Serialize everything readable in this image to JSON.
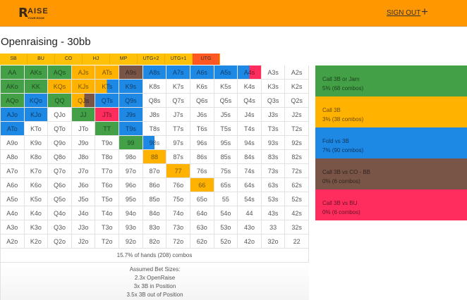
{
  "header": {
    "logo_main": "AISE",
    "logo_sub": "YOUR EDGE",
    "sign_out": "SIGN OUT",
    "plus": "+"
  },
  "title": "Openraising - 30bb",
  "positions": [
    {
      "label": "SB"
    },
    {
      "label": "BU"
    },
    {
      "label": "CO"
    },
    {
      "label": "HJ"
    },
    {
      "label": "MP"
    },
    {
      "label": "UTG+2"
    },
    {
      "label": "UTG+1"
    },
    {
      "label": "UTG",
      "active": true
    }
  ],
  "colors": {
    "g": "#43a047",
    "y": "#ffb300",
    "b": "#1e88e5",
    "br": "#795548",
    "r": "#ff2d5e",
    "w": "#ffffff"
  },
  "grid": [
    [
      [
        "AA",
        [
          [
            "g",
            1
          ]
        ]
      ],
      [
        "AKs",
        [
          [
            "g",
            1
          ]
        ]
      ],
      [
        "AQs",
        [
          [
            "g",
            1
          ]
        ]
      ],
      [
        "AJs",
        [
          [
            "y",
            1
          ]
        ]
      ],
      [
        "ATs",
        [
          [
            "y",
            1
          ]
        ]
      ],
      [
        "A9s",
        [
          [
            "br",
            1
          ]
        ]
      ],
      [
        "A8s",
        [
          [
            "b",
            1
          ]
        ]
      ],
      [
        "A7s",
        [
          [
            "b",
            1
          ]
        ]
      ],
      [
        "A6s",
        [
          [
            "b",
            1
          ]
        ]
      ],
      [
        "A5s",
        [
          [
            "b",
            1
          ]
        ]
      ],
      [
        "A4s",
        [
          [
            "b",
            0.5
          ],
          [
            "r",
            0.5
          ]
        ]
      ],
      [
        "A3s",
        [
          [
            "w",
            1
          ]
        ]
      ],
      [
        "A2s",
        [
          [
            "w",
            1
          ]
        ]
      ]
    ],
    [
      [
        "AKo",
        [
          [
            "g",
            1
          ]
        ]
      ],
      [
        "KK",
        [
          [
            "g",
            1
          ]
        ]
      ],
      [
        "KQs",
        [
          [
            "y",
            1
          ]
        ]
      ],
      [
        "KJs",
        [
          [
            "y",
            1
          ]
        ]
      ],
      [
        "KTs",
        [
          [
            "y",
            0.5
          ],
          [
            "b",
            0.5
          ]
        ]
      ],
      [
        "K9s",
        [
          [
            "b",
            1
          ]
        ]
      ],
      [
        "K8s",
        [
          [
            "w",
            1
          ]
        ]
      ],
      [
        "K7s",
        [
          [
            "w",
            1
          ]
        ]
      ],
      [
        "K6s",
        [
          [
            "w",
            1
          ]
        ]
      ],
      [
        "K5s",
        [
          [
            "w",
            1
          ]
        ]
      ],
      [
        "K4s",
        [
          [
            "w",
            1
          ]
        ]
      ],
      [
        "K3s",
        [
          [
            "w",
            1
          ]
        ]
      ],
      [
        "K2s",
        [
          [
            "w",
            1
          ]
        ]
      ]
    ],
    [
      [
        "AQo",
        [
          [
            "g",
            1
          ]
        ]
      ],
      [
        "KQo",
        [
          [
            "b",
            1
          ]
        ]
      ],
      [
        "QQ",
        [
          [
            "g",
            1
          ]
        ]
      ],
      [
        "QJs",
        [
          [
            "y",
            0.55
          ],
          [
            "br",
            0.45
          ]
        ]
      ],
      [
        "QTs",
        [
          [
            "b",
            1
          ]
        ]
      ],
      [
        "Q9s",
        [
          [
            "b",
            1
          ]
        ]
      ],
      [
        "Q8s",
        [
          [
            "w",
            1
          ]
        ]
      ],
      [
        "Q7s",
        [
          [
            "w",
            1
          ]
        ]
      ],
      [
        "Q6s",
        [
          [
            "w",
            1
          ]
        ]
      ],
      [
        "Q5s",
        [
          [
            "w",
            1
          ]
        ]
      ],
      [
        "Q4s",
        [
          [
            "w",
            1
          ]
        ]
      ],
      [
        "Q3s",
        [
          [
            "w",
            1
          ]
        ]
      ],
      [
        "Q2s",
        [
          [
            "w",
            1
          ]
        ]
      ]
    ],
    [
      [
        "AJo",
        [
          [
            "b",
            1
          ]
        ]
      ],
      [
        "KJo",
        [
          [
            "b",
            1
          ]
        ]
      ],
      [
        "QJo",
        [
          [
            "w",
            1
          ]
        ]
      ],
      [
        "JJ",
        [
          [
            "g",
            1
          ]
        ]
      ],
      [
        "JTs",
        [
          [
            "r",
            1
          ]
        ]
      ],
      [
        "J9s",
        [
          [
            "b",
            1
          ]
        ]
      ],
      [
        "J8s",
        [
          [
            "w",
            1
          ]
        ]
      ],
      [
        "J7s",
        [
          [
            "w",
            1
          ]
        ]
      ],
      [
        "J6s",
        [
          [
            "w",
            1
          ]
        ]
      ],
      [
        "J5s",
        [
          [
            "w",
            1
          ]
        ]
      ],
      [
        "J4s",
        [
          [
            "w",
            1
          ]
        ]
      ],
      [
        "J3s",
        [
          [
            "w",
            1
          ]
        ]
      ],
      [
        "J2s",
        [
          [
            "w",
            1
          ]
        ]
      ]
    ],
    [
      [
        "ATo",
        [
          [
            "b",
            1
          ]
        ]
      ],
      [
        "KTo",
        [
          [
            "w",
            1
          ]
        ]
      ],
      [
        "QTo",
        [
          [
            "w",
            1
          ]
        ]
      ],
      [
        "JTo",
        [
          [
            "w",
            1
          ]
        ]
      ],
      [
        "TT",
        [
          [
            "g",
            1
          ]
        ]
      ],
      [
        "T9s",
        [
          [
            "b",
            1
          ]
        ]
      ],
      [
        "T8s",
        [
          [
            "w",
            1
          ]
        ]
      ],
      [
        "T7s",
        [
          [
            "w",
            1
          ]
        ]
      ],
      [
        "T6s",
        [
          [
            "w",
            1
          ]
        ]
      ],
      [
        "T5s",
        [
          [
            "w",
            1
          ]
        ]
      ],
      [
        "T4s",
        [
          [
            "w",
            1
          ]
        ]
      ],
      [
        "T3s",
        [
          [
            "w",
            1
          ]
        ]
      ],
      [
        "T2s",
        [
          [
            "w",
            1
          ]
        ]
      ]
    ],
    [
      [
        "A9o",
        [
          [
            "w",
            1
          ]
        ]
      ],
      [
        "K9o",
        [
          [
            "w",
            1
          ]
        ]
      ],
      [
        "Q9o",
        [
          [
            "w",
            1
          ]
        ]
      ],
      [
        "J9o",
        [
          [
            "w",
            1
          ]
        ]
      ],
      [
        "T9o",
        [
          [
            "w",
            1
          ]
        ]
      ],
      [
        "99",
        [
          [
            "g",
            1
          ]
        ]
      ],
      [
        "98s",
        [
          [
            "b",
            0.5
          ],
          [
            "w",
            0.5
          ]
        ]
      ],
      [
        "97s",
        [
          [
            "w",
            1
          ]
        ]
      ],
      [
        "96s",
        [
          [
            "w",
            1
          ]
        ]
      ],
      [
        "95s",
        [
          [
            "w",
            1
          ]
        ]
      ],
      [
        "94s",
        [
          [
            "w",
            1
          ]
        ]
      ],
      [
        "93s",
        [
          [
            "w",
            1
          ]
        ]
      ],
      [
        "92s",
        [
          [
            "w",
            1
          ]
        ]
      ]
    ],
    [
      [
        "A8o",
        [
          [
            "w",
            1
          ]
        ]
      ],
      [
        "K8o",
        [
          [
            "w",
            1
          ]
        ]
      ],
      [
        "Q8o",
        [
          [
            "w",
            1
          ]
        ]
      ],
      [
        "J8o",
        [
          [
            "w",
            1
          ]
        ]
      ],
      [
        "T8o",
        [
          [
            "w",
            1
          ]
        ]
      ],
      [
        "98o",
        [
          [
            "w",
            1
          ]
        ]
      ],
      [
        "88",
        [
          [
            "y",
            1
          ]
        ]
      ],
      [
        "87s",
        [
          [
            "w",
            1
          ]
        ]
      ],
      [
        "86s",
        [
          [
            "w",
            1
          ]
        ]
      ],
      [
        "85s",
        [
          [
            "w",
            1
          ]
        ]
      ],
      [
        "84s",
        [
          [
            "w",
            1
          ]
        ]
      ],
      [
        "83s",
        [
          [
            "w",
            1
          ]
        ]
      ],
      [
        "82s",
        [
          [
            "w",
            1
          ]
        ]
      ]
    ],
    [
      [
        "A7o",
        [
          [
            "w",
            1
          ]
        ]
      ],
      [
        "K7o",
        [
          [
            "w",
            1
          ]
        ]
      ],
      [
        "Q7o",
        [
          [
            "w",
            1
          ]
        ]
      ],
      [
        "J7o",
        [
          [
            "w",
            1
          ]
        ]
      ],
      [
        "T7o",
        [
          [
            "w",
            1
          ]
        ]
      ],
      [
        "97o",
        [
          [
            "w",
            1
          ]
        ]
      ],
      [
        "87o",
        [
          [
            "w",
            1
          ]
        ]
      ],
      [
        "77",
        [
          [
            "y",
            1
          ]
        ]
      ],
      [
        "76s",
        [
          [
            "w",
            1
          ]
        ]
      ],
      [
        "75s",
        [
          [
            "w",
            1
          ]
        ]
      ],
      [
        "74s",
        [
          [
            "w",
            1
          ]
        ]
      ],
      [
        "73s",
        [
          [
            "w",
            1
          ]
        ]
      ],
      [
        "72s",
        [
          [
            "w",
            1
          ]
        ]
      ]
    ],
    [
      [
        "A6o",
        [
          [
            "w",
            1
          ]
        ]
      ],
      [
        "K6o",
        [
          [
            "w",
            1
          ]
        ]
      ],
      [
        "Q6o",
        [
          [
            "w",
            1
          ]
        ]
      ],
      [
        "J6o",
        [
          [
            "w",
            1
          ]
        ]
      ],
      [
        "T6o",
        [
          [
            "w",
            1
          ]
        ]
      ],
      [
        "96o",
        [
          [
            "w",
            1
          ]
        ]
      ],
      [
        "86o",
        [
          [
            "w",
            1
          ]
        ]
      ],
      [
        "76o",
        [
          [
            "w",
            1
          ]
        ]
      ],
      [
        "66",
        [
          [
            "y",
            1
          ]
        ]
      ],
      [
        "65s",
        [
          [
            "w",
            1
          ]
        ]
      ],
      [
        "64s",
        [
          [
            "w",
            1
          ]
        ]
      ],
      [
        "63s",
        [
          [
            "w",
            1
          ]
        ]
      ],
      [
        "62s",
        [
          [
            "w",
            1
          ]
        ]
      ]
    ],
    [
      [
        "A5o",
        [
          [
            "w",
            1
          ]
        ]
      ],
      [
        "K5o",
        [
          [
            "w",
            1
          ]
        ]
      ],
      [
        "Q5o",
        [
          [
            "w",
            1
          ]
        ]
      ],
      [
        "J5o",
        [
          [
            "w",
            1
          ]
        ]
      ],
      [
        "T5o",
        [
          [
            "w",
            1
          ]
        ]
      ],
      [
        "95o",
        [
          [
            "w",
            1
          ]
        ]
      ],
      [
        "85o",
        [
          [
            "w",
            1
          ]
        ]
      ],
      [
        "75o",
        [
          [
            "w",
            1
          ]
        ]
      ],
      [
        "65o",
        [
          [
            "w",
            1
          ]
        ]
      ],
      [
        "55",
        [
          [
            "w",
            1
          ]
        ]
      ],
      [
        "54s",
        [
          [
            "w",
            1
          ]
        ]
      ],
      [
        "53s",
        [
          [
            "w",
            1
          ]
        ]
      ],
      [
        "52s",
        [
          [
            "w",
            1
          ]
        ]
      ]
    ],
    [
      [
        "A4o",
        [
          [
            "w",
            1
          ]
        ]
      ],
      [
        "K4o",
        [
          [
            "w",
            1
          ]
        ]
      ],
      [
        "Q4o",
        [
          [
            "w",
            1
          ]
        ]
      ],
      [
        "J4o",
        [
          [
            "w",
            1
          ]
        ]
      ],
      [
        "T4o",
        [
          [
            "w",
            1
          ]
        ]
      ],
      [
        "94o",
        [
          [
            "w",
            1
          ]
        ]
      ],
      [
        "84o",
        [
          [
            "w",
            1
          ]
        ]
      ],
      [
        "74o",
        [
          [
            "w",
            1
          ]
        ]
      ],
      [
        "64o",
        [
          [
            "w",
            1
          ]
        ]
      ],
      [
        "54o",
        [
          [
            "w",
            1
          ]
        ]
      ],
      [
        "44",
        [
          [
            "w",
            1
          ]
        ]
      ],
      [
        "43s",
        [
          [
            "w",
            1
          ]
        ]
      ],
      [
        "42s",
        [
          [
            "w",
            1
          ]
        ]
      ]
    ],
    [
      [
        "A3o",
        [
          [
            "w",
            1
          ]
        ]
      ],
      [
        "K3o",
        [
          [
            "w",
            1
          ]
        ]
      ],
      [
        "Q3o",
        [
          [
            "w",
            1
          ]
        ]
      ],
      [
        "J3o",
        [
          [
            "w",
            1
          ]
        ]
      ],
      [
        "T3o",
        [
          [
            "w",
            1
          ]
        ]
      ],
      [
        "93o",
        [
          [
            "w",
            1
          ]
        ]
      ],
      [
        "83o",
        [
          [
            "w",
            1
          ]
        ]
      ],
      [
        "73o",
        [
          [
            "w",
            1
          ]
        ]
      ],
      [
        "63o",
        [
          [
            "w",
            1
          ]
        ]
      ],
      [
        "53o",
        [
          [
            "w",
            1
          ]
        ]
      ],
      [
        "43o",
        [
          [
            "w",
            1
          ]
        ]
      ],
      [
        "33",
        [
          [
            "w",
            1
          ]
        ]
      ],
      [
        "32s",
        [
          [
            "w",
            1
          ]
        ]
      ]
    ],
    [
      [
        "A2o",
        [
          [
            "w",
            1
          ]
        ]
      ],
      [
        "K2o",
        [
          [
            "w",
            1
          ]
        ]
      ],
      [
        "Q2o",
        [
          [
            "w",
            1
          ]
        ]
      ],
      [
        "J2o",
        [
          [
            "w",
            1
          ]
        ]
      ],
      [
        "T2o",
        [
          [
            "w",
            1
          ]
        ]
      ],
      [
        "92o",
        [
          [
            "w",
            1
          ]
        ]
      ],
      [
        "82o",
        [
          [
            "w",
            1
          ]
        ]
      ],
      [
        "72o",
        [
          [
            "w",
            1
          ]
        ]
      ],
      [
        "62o",
        [
          [
            "w",
            1
          ]
        ]
      ],
      [
        "52o",
        [
          [
            "w",
            1
          ]
        ]
      ],
      [
        "42o",
        [
          [
            "w",
            1
          ]
        ]
      ],
      [
        "32o",
        [
          [
            "w",
            1
          ]
        ]
      ],
      [
        "22",
        [
          [
            "w",
            1
          ]
        ]
      ]
    ]
  ],
  "summary": "15.7% of hands (208) combos",
  "bet_sizes": {
    "heading": "Assumed Bet Sizes:",
    "lines": [
      "2.3x OpenRaise",
      "3x 3B in Position",
      "3.5x 3B out of Position"
    ]
  },
  "legend": [
    {
      "label": "Call 3B or Jam",
      "stat": "5% (68 combos)",
      "color": "#43a047"
    },
    {
      "label": "Call 3B",
      "stat": "3% (38 combos)",
      "color": "#ffb300"
    },
    {
      "label": "Fold vs 3B",
      "stat": "7% (90 combos)",
      "color": "#1e88e5"
    },
    {
      "label": "Call 3B vs CO - BB",
      "stat": "0% (6 combos)",
      "color": "#795548"
    },
    {
      "label": "Call 3B vs BU",
      "stat": "0% (6 combos)",
      "color": "#ff2d5e"
    }
  ]
}
